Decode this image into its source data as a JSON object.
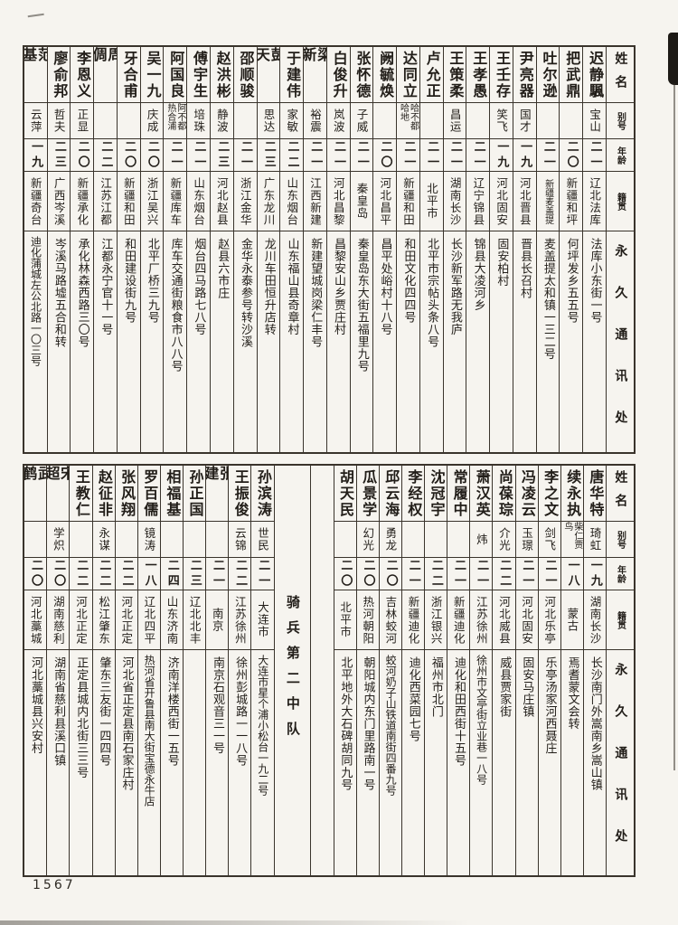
{
  "page_number": "1567",
  "colors": {
    "paper": "#f6f4ef",
    "ink": "#221e19",
    "table_line": "#3a342c"
  },
  "headers": {
    "name": "姓名",
    "alias": "别号",
    "age": "年龄",
    "native": "籍贯",
    "address": "永久通讯处"
  },
  "divider_label": "骑兵第二中队",
  "table_top": {
    "people": [
      {
        "name": "迟静颿",
        "alias": "宝山",
        "age": "二一",
        "native": "辽北法库",
        "address": "法库小东街一号"
      },
      {
        "name": "把武鼎",
        "alias": "",
        "age": "二〇",
        "native": "新疆和坪",
        "address": "何坪发乡五五号"
      },
      {
        "name": "吐尔逊",
        "alias": "",
        "age": "二一",
        "native": "新疆麦盖提",
        "address": "麦盖提太和镇一三二号"
      },
      {
        "name": "尹亮器",
        "alias": "国才",
        "age": "一九",
        "native": "河北晋县",
        "address": "晋县长召村"
      },
      {
        "name": "王壬存",
        "alias": "笑飞",
        "age": "一九",
        "native": "河北固安",
        "address": "固安柏村"
      },
      {
        "name": "王孝愚",
        "alias": "",
        "age": "二一",
        "native": "辽宁锦县",
        "address": "锦县大凌河乡"
      },
      {
        "name": "王策柔",
        "alias": "昌运",
        "age": "二一",
        "native": "湖南长沙",
        "address": "长沙新军路无我庐"
      },
      {
        "name": "卢允正",
        "alias": "",
        "age": "二一",
        "native": "北平市",
        "address": "北平市宗帖头条八号"
      },
      {
        "name": "达同立",
        "alias": "哈不都哈地",
        "age": "二一",
        "native": "新疆和田",
        "address": "和田文化四四号"
      },
      {
        "name": "阙毓焕",
        "alias": "",
        "age": "二〇",
        "native": "河北昌平",
        "address": "昌平处峪村十八号"
      },
      {
        "name": "张怀德",
        "alias": "子威",
        "age": "二一",
        "native": "秦皇岛",
        "address": "秦皇岛东大街五福里九号"
      },
      {
        "name": "白俊升",
        "alias": "岚波",
        "age": "二一",
        "native": "河北昌黎",
        "address": "昌黎安山乡贾庄村"
      },
      {
        "name": "梁新",
        "alias": "裕震",
        "age": "二一",
        "native": "江西新建",
        "address": "新建望城岗梁仁丰号"
      },
      {
        "name": "于建伟",
        "alias": "家敏",
        "age": "二二",
        "native": "山东烟台",
        "address": "山东福山县奇章村"
      },
      {
        "name": "彭天",
        "alias": "思达",
        "age": "二三",
        "native": "广东龙川",
        "address": "龙川车田恒升店转"
      },
      {
        "name": "邵顺骏",
        "alias": "",
        "age": "二一",
        "native": "浙江金华",
        "address": "金华永泰参号转沙溪"
      },
      {
        "name": "赵洪彬",
        "alias": "静波",
        "age": "二三",
        "native": "河北赵县",
        "address": "赵县六市庄"
      },
      {
        "name": "傅宇生",
        "alias": "培珠",
        "age": "二一",
        "native": "山东烟台",
        "address": "烟台四马路七八号"
      },
      {
        "name": "阿国良",
        "alias": "阿不都热合浦",
        "age": "二一",
        "native": "新疆库车",
        "address": "库车交通街粮食市八八号"
      },
      {
        "name": "吴一九",
        "alias": "庆成",
        "age": "二〇",
        "native": "浙江吴兴",
        "address": "北平厂桥三九号"
      },
      {
        "name": "牙合甫",
        "alias": "",
        "age": "二〇",
        "native": "新疆和田",
        "address": "和田建设街九号"
      },
      {
        "name": "周倜",
        "alias": "",
        "age": "二二",
        "native": "江苏江都",
        "address": "江都永宁官十一号"
      },
      {
        "name": "李恩义",
        "alias": "正显",
        "age": "二〇",
        "native": "新疆承化",
        "address": "承化林森西路三〇号"
      },
      {
        "name": "廖俞邦",
        "alias": "哲夫",
        "age": "二三",
        "native": "广西岑溪",
        "address": "岑溪马路墟五合和转"
      },
      {
        "name": "范基",
        "alias": "云萍",
        "age": "一九",
        "native": "新疆奇台",
        "address": "迪化蒲城左公北路一〇三号"
      }
    ]
  },
  "table_bottom": {
    "people_right": [
      {
        "name": "唐华特",
        "alias": "琦虹",
        "age": "一九",
        "native": "湖南长沙",
        "address": "长沙南门外嵩南乡嵩山镇"
      },
      {
        "name": "续永执",
        "alias": "柴仁贾鸟",
        "age": "一八",
        "native": "蒙古",
        "address": "焉耆蒙文会转"
      },
      {
        "name": "李之文",
        "alias": "剑飞",
        "age": "二一",
        "native": "河北乐亭",
        "address": "乐亭汤家河西聂庄"
      },
      {
        "name": "冯凌云",
        "alias": "玉璟",
        "age": "二一",
        "native": "河北固安",
        "address": "固安马庄镇"
      },
      {
        "name": "尚葆琮",
        "alias": "介光",
        "age": "二二",
        "native": "河北威县",
        "address": "威县贾家街"
      },
      {
        "name": "萧汉英",
        "alias": "炜",
        "age": "二一",
        "native": "江苏徐州",
        "address": "徐州市文亭街立业巷一八号"
      },
      {
        "name": "常履中",
        "alias": "",
        "age": "二一",
        "native": "新疆迪化",
        "address": "迪化和田西街十五号"
      },
      {
        "name": "沈冠宇",
        "alias": "",
        "age": "二二",
        "native": "浙江银兴",
        "address": "福州市北门"
      },
      {
        "name": "李经权",
        "alias": "",
        "age": "二一",
        "native": "新疆迪化",
        "address": "迪化西菜园七号"
      },
      {
        "name": "邱云海",
        "alias": "勇龙",
        "age": "二〇",
        "native": "吉林蛟河",
        "address": "蛟河奶子山铁道南街四番九号"
      },
      {
        "name": "瓜景学",
        "alias": "幻光",
        "age": "二〇",
        "native": "热河朝阳",
        "address": "朝阳城内东门里路南一号"
      },
      {
        "name": "胡天民",
        "alias": "",
        "age": "二〇",
        "native": "北平市",
        "address": "北平地外大石碑胡同九号"
      }
    ],
    "people_left": [
      {
        "name": "孙滨涛",
        "alias": "世民",
        "age": "二一",
        "native": "大连市",
        "address": "大连市星个浦小松台一九二号"
      },
      {
        "name": "王振俊",
        "alias": "云锦",
        "age": "二二",
        "native": "江苏徐州",
        "address": "徐州彭城路一一八号"
      },
      {
        "name": "张建",
        "alias": "",
        "age": "二一",
        "native": "南京",
        "address": "南京石观音三一号"
      },
      {
        "name": "孙正国",
        "alias": "",
        "age": "二三",
        "native": "辽北北丰",
        "address": ""
      },
      {
        "name": "相福基",
        "alias": "",
        "age": "二四",
        "native": "山东济南",
        "address": "济南洋楼西街一五号"
      },
      {
        "name": "罗百儒",
        "alias": "镜涛",
        "age": "一八",
        "native": "辽北四平",
        "address": "热河省开鲁县南大街宝德永牛店"
      },
      {
        "name": "张风翔",
        "alias": "",
        "age": "二二",
        "native": "河北正定",
        "address": "河北省正定县南石家庄村"
      },
      {
        "name": "赵征非",
        "alias": "永谋",
        "age": "二二",
        "native": "松江肇东",
        "address": "肇东三友街一四四号"
      },
      {
        "name": "王教仁",
        "alias": "",
        "age": "二二",
        "native": "河北正定",
        "address": "正定县城内北街三三号"
      },
      {
        "name": "宋超",
        "alias": "学炽",
        "age": "二〇",
        "native": "湖南慈利",
        "address": "湖南省慈利县溪口镇"
      },
      {
        "name": "武鹤",
        "alias": "",
        "age": "二〇",
        "native": "河北藁城",
        "address": "河北藁城县兴安村"
      }
    ]
  }
}
